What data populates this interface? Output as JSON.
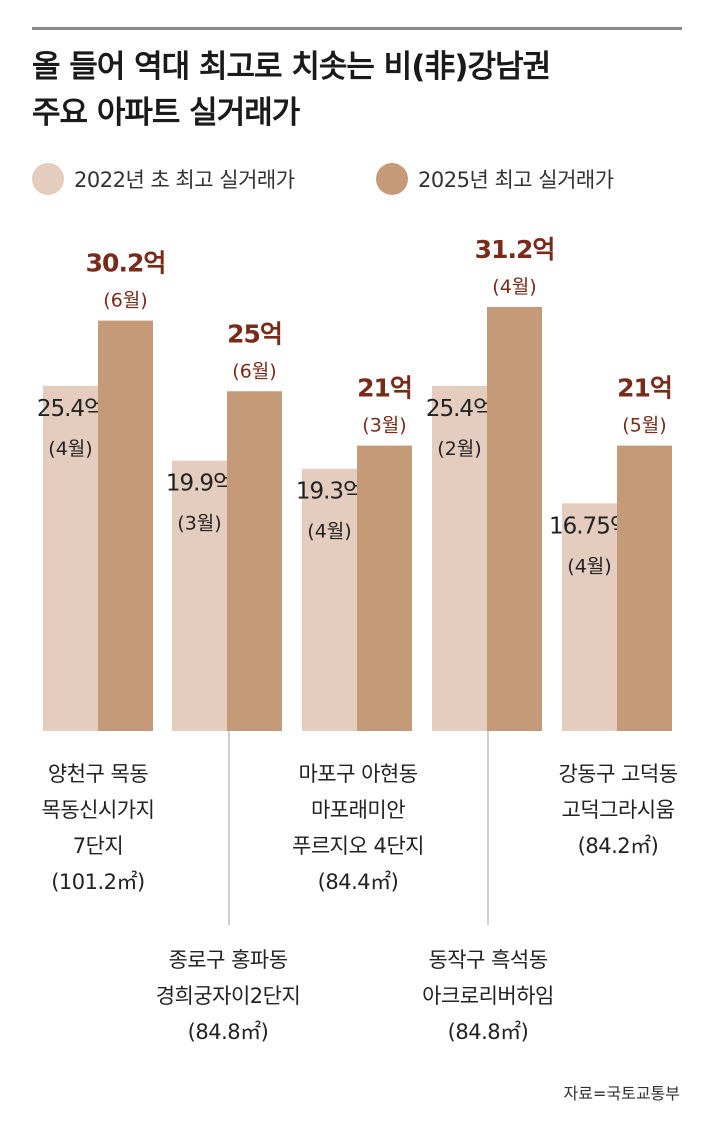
{
  "title_lines": [
    "올 들어 역대 최고로 치솟는 비(非)강남권",
    "주요 아파트 실거래가"
  ],
  "colors": {
    "c2022": "#e4cdbe",
    "c2025": "#c49a79",
    "hi_label": "#7a2a18",
    "lo_label": "#222222",
    "rule": "#8a8a8a"
  },
  "chart_data": {
    "type": "bar",
    "title": "올 들어 역대 최고로 치솟는 비(非)강남권 주요 아파트 실거래가",
    "series": [
      {
        "name": "2022년 초 최고 실거래가",
        "values": [
          25.4,
          19.9,
          19.3,
          25.4,
          16.75
        ],
        "value_labels": [
          "25.4억",
          "19.9억",
          "19.3억",
          "25.4억",
          "16.75억"
        ],
        "month_labels": [
          "(4월)",
          "(3월)",
          "(4월)",
          "(2월)",
          "(4월)"
        ]
      },
      {
        "name": "2025년 최고 실거래가",
        "values": [
          30.2,
          25,
          21,
          31.2,
          21
        ],
        "value_labels": [
          "30.2억",
          "25억",
          "21억",
          "31.2억",
          "21억"
        ],
        "month_labels": [
          "(6월)",
          "(6월)",
          "(3월)",
          "(4월)",
          "(5월)"
        ]
      }
    ],
    "categories": [
      [
        "양천구 목동",
        "목동신시가지",
        "7단지",
        "(101.2㎡)"
      ],
      [
        "종로구 홍파동",
        "경희궁자이2단지",
        "(84.8㎡)"
      ],
      [
        "마포구 아현동",
        "마포래미안",
        "푸르지오 4단지",
        "(84.4㎡)"
      ],
      [
        "동작구 흑석동",
        "아크로리버하임",
        "(84.8㎡)"
      ],
      [
        "강동구 고덕동",
        "고덕그라시움",
        "(84.2㎡)"
      ]
    ],
    "xlabel": "",
    "ylabel": "",
    "ylim": [
      0,
      31.2
    ],
    "legend": "top-left",
    "grid": false
  },
  "source": "자료=국토교통부"
}
